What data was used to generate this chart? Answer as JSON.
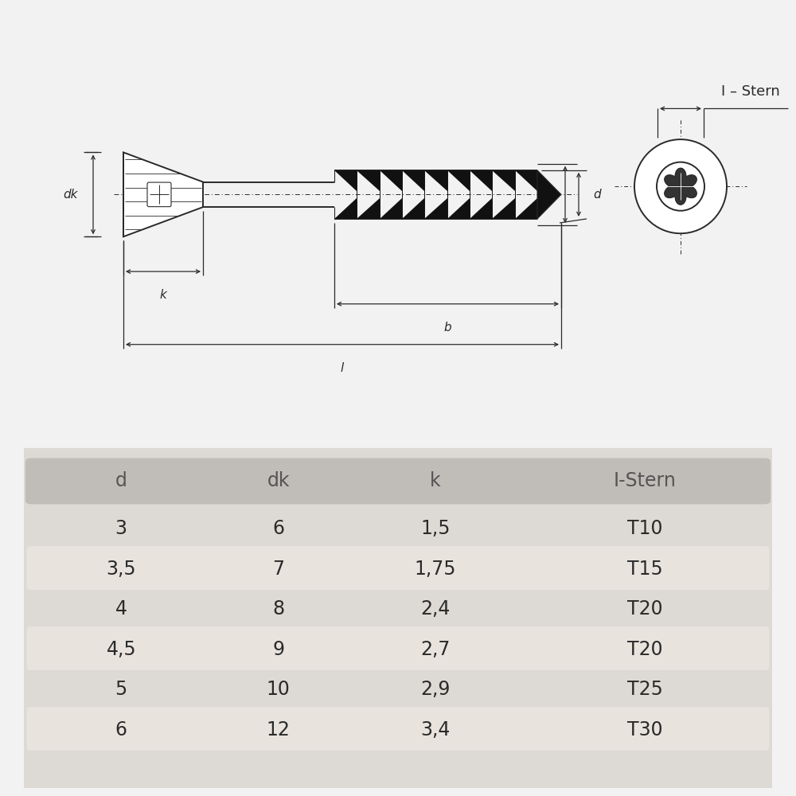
{
  "bg_color": "#f2f2f2",
  "table_outer_bg": "#ddd9d4",
  "table_row_alt": "#e8e3dd",
  "table_header_bg": "#c0bcb8",
  "header_cols": [
    "d",
    "dk",
    "k",
    "I-Stern"
  ],
  "rows": [
    [
      "3",
      "6",
      "1,5",
      "T10"
    ],
    [
      "3,5",
      "7",
      "1,75",
      "T15"
    ],
    [
      "4",
      "8",
      "2,4",
      "T20"
    ],
    [
      "4,5",
      "9",
      "2,7",
      "T20"
    ],
    [
      "5",
      "10",
      "2,9",
      "T25"
    ],
    [
      "6",
      "12",
      "3,4",
      "T30"
    ]
  ],
  "line_color": "#2a2a2a",
  "text_color": "#2a2a2a",
  "font_size_label": 11,
  "font_size_table": 17,
  "font_size_header": 17
}
